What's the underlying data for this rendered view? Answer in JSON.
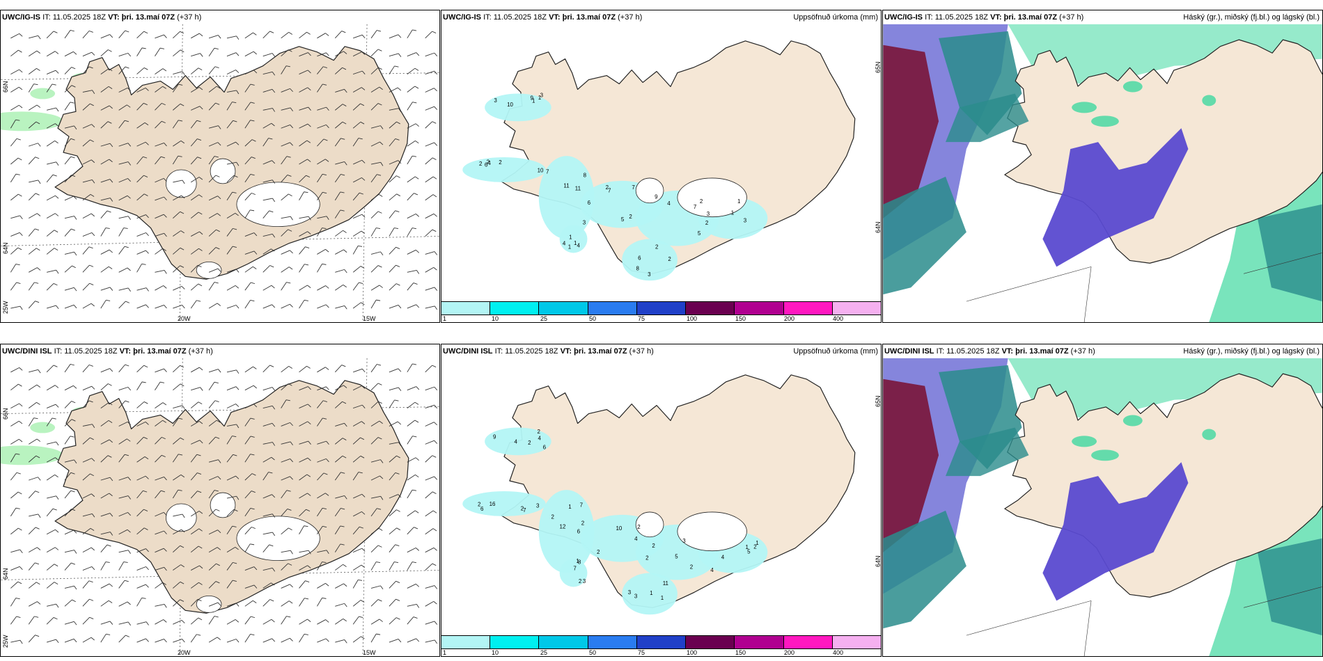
{
  "row1": {
    "wind": {
      "model": "UWC/IG-IS",
      "it_label": "IT:",
      "it_value": "11.05.2025 18Z",
      "vt_label": "VT:",
      "vt_value": "þri. 13.maí 07Z",
      "lead": "(+37 h)",
      "lat_labels": [
        "66N",
        "64N",
        "25W"
      ],
      "lon_labels": [
        "20W",
        "15W"
      ]
    },
    "precip": {
      "model": "UWC/IG-IS",
      "it_label": "IT:",
      "it_value": "11.05.2025 18Z",
      "vt_label": "VT:",
      "vt_value": "þri. 13.maí 07Z",
      "lead": "(+37 h)",
      "title": "Uppsöfnuð úrkoma (mm)",
      "lat_labels": [
        "65N",
        "64N"
      ],
      "values": [
        "3",
        "4",
        "11",
        "5",
        "2",
        "3",
        "3",
        "1",
        "1",
        "10",
        "6",
        "7",
        "7",
        "8",
        "3",
        "1",
        "10",
        "2",
        "3",
        "2",
        "5",
        "2",
        "1",
        "1",
        "9",
        "6",
        "8",
        "7",
        "9",
        "6",
        "2",
        "4",
        "3",
        "2",
        "7",
        "2",
        "4",
        "2",
        "1",
        "4",
        "1",
        "2",
        "11"
      ]
    },
    "cloud": {
      "model": "UWC/IG-IS",
      "it_label": "IT:",
      "it_value": "11.05.2025 18Z",
      "vt_label": "VT:",
      "vt_value": "þri. 13.maí 07Z",
      "lead": "(+37 h)",
      "title": "Háský (gr.), miðský (fj.bl.) og lágský (bl.)"
    }
  },
  "row2": {
    "wind": {
      "model": "UWC/DINI ISL",
      "it_label": "IT:",
      "it_value": "11.05.2025 18Z",
      "vt_label": "VT:",
      "vt_value": "þri. 13.maí 07Z",
      "lead": "(+37 h)",
      "lat_labels": [
        "66N",
        "64N",
        "25W"
      ],
      "lon_labels": [
        "20W",
        "15W"
      ]
    },
    "precip": {
      "model": "UWC/DINI ISL",
      "it_label": "IT:",
      "it_value": "11.05.2025 18Z",
      "vt_label": "VT:",
      "vt_value": "þri. 13.maí 07Z",
      "lead": "(+37 h)",
      "title": "Uppsöfnuð úrkoma (mm)",
      "lat_labels": [
        "65N",
        "64N"
      ],
      "values": [
        "2",
        "3",
        "2",
        "2",
        "2",
        "11",
        "2",
        "7",
        "6",
        "7",
        "6",
        "4",
        "2",
        "1",
        "4",
        "3",
        "2",
        "2",
        "7",
        "10",
        "5",
        "3",
        "1",
        "8",
        "4",
        "6",
        "2",
        "2",
        "4",
        "3",
        "1",
        "1",
        "9",
        "2",
        "12",
        "2",
        "3",
        "1",
        "5",
        "2",
        "4",
        "16",
        "1"
      ]
    },
    "cloud": {
      "model": "UWC/DINI ISL",
      "it_label": "IT:",
      "it_value": "11.05.2025 18Z",
      "vt_label": "VT:",
      "vt_value": "þri. 13.maí 07Z",
      "lead": "(+37 h)",
      "title": "Háský (gr.), miðský (fj.bl.) og lágský (bl.)"
    }
  },
  "colorbar": {
    "ticks": [
      "1",
      "10",
      "25",
      "50",
      "75",
      "100",
      "150",
      "200",
      "400"
    ],
    "colors": [
      "#b3f5f5",
      "#00f0f0",
      "#00c8e8",
      "#2a7cf0",
      "#2040c8",
      "#6a0050",
      "#b00090",
      "#ff18c0",
      "#f5b0f0"
    ]
  },
  "colors": {
    "land": "#f5e7d6",
    "land_wind": "#ecdcc8",
    "precip_light": "#b3f5f5",
    "cloud_high": "#7878d8",
    "cloud_mid": "#2a8c8c",
    "cloud_low": "#40d8a0",
    "cloud_dark": "#7a1a40",
    "green_light": "#a8f0b0"
  }
}
